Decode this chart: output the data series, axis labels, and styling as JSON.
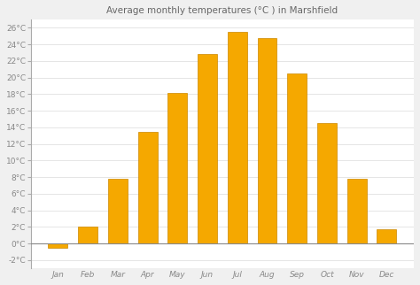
{
  "title": "Average monthly temperatures (°C ) in Marshfield",
  "months": [
    "Jan",
    "Feb",
    "Mar",
    "Apr",
    "May",
    "Jun",
    "Jul",
    "Aug",
    "Sep",
    "Oct",
    "Nov",
    "Dec"
  ],
  "values": [
    -0.5,
    2.0,
    7.8,
    13.5,
    18.1,
    22.8,
    25.5,
    24.8,
    20.5,
    14.5,
    7.8,
    1.7
  ],
  "bar_color": "#F5A800",
  "bar_edge_color": "#CC8800",
  "figure_bg_color": "#f0f0f0",
  "plot_bg_color": "#ffffff",
  "ylim": [
    -3,
    27
  ],
  "ytick_values": [
    -2,
    0,
    2,
    4,
    6,
    8,
    10,
    12,
    14,
    16,
    18,
    20,
    22,
    24,
    26
  ],
  "title_fontsize": 7.5,
  "tick_fontsize": 6.5,
  "grid_color": "#e0e0e0",
  "spine_color": "#aaaaaa",
  "tick_label_color": "#888888",
  "title_color": "#666666",
  "zero_line_color": "#888888",
  "bar_width": 0.65
}
